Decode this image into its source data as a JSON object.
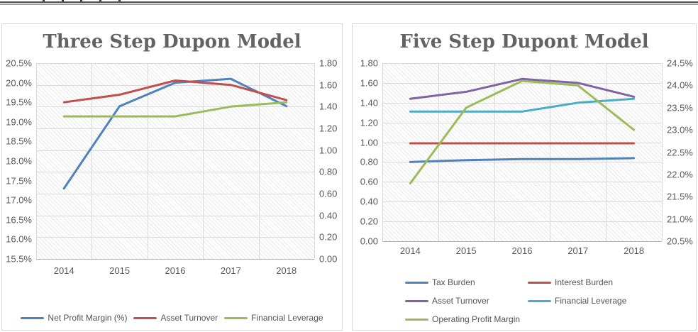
{
  "page": {
    "background": "#ffffff",
    "top_rule_dark_color": "#515151",
    "top_rule_light_color": "#9d9d9d",
    "top_edge_has_cropped_glyphs": true
  },
  "chart_data": [
    {
      "type": "line",
      "title": "Three Step Dupon Model",
      "title_color": "#636363",
      "plot_background": "light-downward-diagonal-hatch",
      "grid": true,
      "legend_position": "bottom",
      "categories": [
        "2014",
        "2015",
        "2016",
        "2017",
        "2018"
      ],
      "axes": {
        "left": {
          "min": 15.5,
          "max": 20.5,
          "step": 0.5,
          "format": "percent"
        },
        "right": {
          "min": 0.0,
          "max": 1.8,
          "step": 0.2,
          "format": "decimal"
        }
      },
      "left_axis_labels": [
        "20.5%",
        "20.0%",
        "19.5%",
        "19.0%",
        "18.5%",
        "18.0%",
        "17.5%",
        "17.0%",
        "16.5%",
        "16.0%",
        "15.5%"
      ],
      "right_axis_labels": [
        "1.80",
        "1.60",
        "1.40",
        "1.20",
        "1.00",
        "0.80",
        "0.60",
        "0.40",
        "0.20",
        "0.00"
      ],
      "series": [
        {
          "name": "Net Profit Margin (%)",
          "color": "#4F81BD",
          "axis": "left",
          "values": [
            17.3,
            19.4,
            20.0,
            20.1,
            19.4
          ]
        },
        {
          "name": "Asset Turnover",
          "color": "#C0504D",
          "axis": "right",
          "values": [
            1.44,
            1.51,
            1.64,
            1.6,
            1.46
          ]
        },
        {
          "name": "Financial Leverage",
          "color": "#9BBB59",
          "axis": "right",
          "values": [
            1.31,
            1.31,
            1.31,
            1.4,
            1.44
          ]
        }
      ]
    },
    {
      "type": "line",
      "title": "Five Step Dupont Model",
      "title_color": "#636363",
      "plot_background": "light-downward-diagonal-hatch",
      "grid": true,
      "legend_position": "bottom",
      "categories": [
        "2014",
        "2015",
        "2016",
        "2017",
        "2018"
      ],
      "axes": {
        "left": {
          "min": 0.0,
          "max": 1.8,
          "step": 0.2,
          "format": "decimal"
        },
        "right": {
          "min": 20.5,
          "max": 24.5,
          "step": 0.5,
          "format": "percent"
        }
      },
      "left_axis_labels": [
        "1.80",
        "1.60",
        "1.40",
        "1.20",
        "1.00",
        "0.80",
        "0.60",
        "0.40",
        "0.20",
        "0.00"
      ],
      "right_axis_labels": [
        "24.5%",
        "24.0%",
        "23.5%",
        "23.0%",
        "22.5%",
        "22.0%",
        "21.5%",
        "21.0%",
        "20.5%"
      ],
      "series": [
        {
          "name": "Tax Burden",
          "color": "#4F81BD",
          "axis": "left",
          "values": [
            0.8,
            0.82,
            0.83,
            0.83,
            0.84
          ]
        },
        {
          "name": "Interest Burden",
          "color": "#C0504D",
          "axis": "left",
          "values": [
            0.99,
            0.99,
            0.99,
            0.99,
            0.99
          ]
        },
        {
          "name": "Asset Turnover",
          "color": "#8064A2",
          "axis": "left",
          "values": [
            1.44,
            1.51,
            1.64,
            1.6,
            1.46
          ]
        },
        {
          "name": "Financial Leverage",
          "color": "#4BACC6",
          "axis": "left",
          "values": [
            1.31,
            1.31,
            1.31,
            1.4,
            1.44
          ]
        },
        {
          "name": "Operating Profit Margin",
          "color": "#9BBB59",
          "axis": "right",
          "values": [
            21.8,
            23.5,
            24.1,
            24.0,
            23.0
          ]
        }
      ]
    }
  ]
}
